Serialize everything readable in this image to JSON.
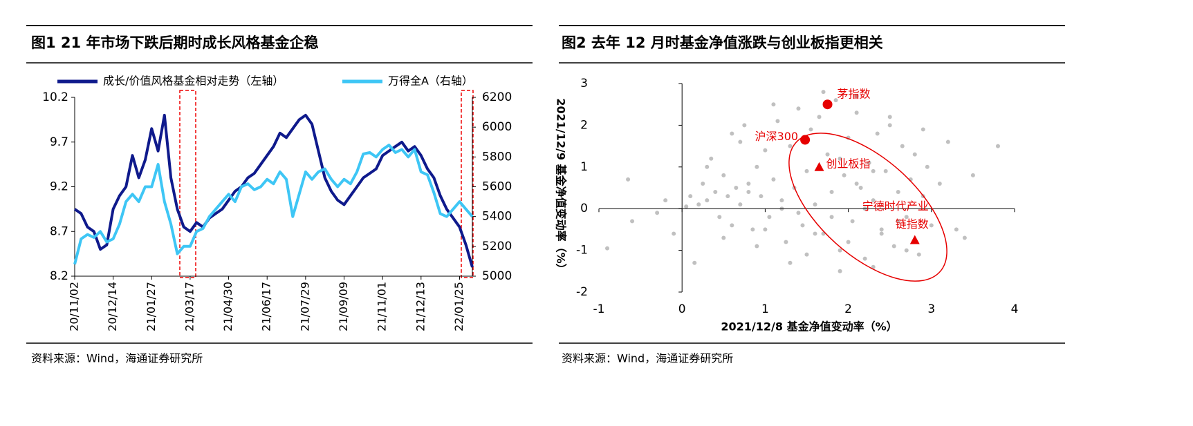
{
  "chart_data": [
    {
      "type": "line",
      "title": "图1  21 年市场下跌后期时成长风格基金企稳",
      "source": "资料来源：Wind，海通证券研究所",
      "categories": [
        "20/11/02",
        null,
        null,
        null,
        null,
        null,
        "20/12/14",
        null,
        null,
        null,
        null,
        null,
        "21/01/27",
        null,
        null,
        null,
        null,
        null,
        "21/03/17",
        null,
        null,
        null,
        null,
        null,
        "21/04/30",
        null,
        null,
        null,
        null,
        null,
        "21/06/17",
        null,
        null,
        null,
        null,
        null,
        "21/07/29",
        null,
        null,
        null,
        null,
        null,
        "21/09/09",
        null,
        null,
        null,
        null,
        null,
        "21/11/01",
        null,
        null,
        null,
        null,
        null,
        "21/12/13",
        null,
        null,
        null,
        null,
        null,
        "22/01/25",
        null,
        null
      ],
      "ylim": [
        8.2,
        10.2
      ],
      "yticks": [
        8.2,
        8.7,
        9.2,
        9.7,
        10.2
      ],
      "y2lim": [
        5000,
        6200
      ],
      "y2ticks": [
        5000,
        5200,
        5400,
        5600,
        5800,
        6000,
        6200
      ],
      "series": [
        {
          "name": "成长/价值风格基金相对走势（左轴）",
          "color": "#0f1a8c",
          "values": [
            8.95,
            8.9,
            8.75,
            8.7,
            8.5,
            8.55,
            8.95,
            9.1,
            9.2,
            9.55,
            9.3,
            9.5,
            9.85,
            9.6,
            10.0,
            9.3,
            8.95,
            8.75,
            8.7,
            8.8,
            8.75,
            8.85,
            8.9,
            8.95,
            9.05,
            9.15,
            9.2,
            9.3,
            9.35,
            9.45,
            9.55,
            9.65,
            9.8,
            9.75,
            9.85,
            9.95,
            10.0,
            9.9,
            9.6,
            9.3,
            9.15,
            9.05,
            9.0,
            9.1,
            9.2,
            9.3,
            9.35,
            9.4,
            9.55,
            9.6,
            9.65,
            9.7,
            9.6,
            9.65,
            9.55,
            9.4,
            9.3,
            9.1,
            8.95,
            8.85,
            8.75,
            8.55,
            8.3
          ]
        },
        {
          "name": "万得全A（右轴）",
          "color": "#3ec6f5",
          "axis": "y2",
          "values": [
            5080,
            5250,
            5280,
            5260,
            5300,
            5230,
            5250,
            5350,
            5500,
            5550,
            5500,
            5600,
            5600,
            5750,
            5500,
            5350,
            5150,
            5200,
            5200,
            5300,
            5320,
            5400,
            5450,
            5500,
            5550,
            5500,
            5600,
            5620,
            5580,
            5600,
            5650,
            5620,
            5700,
            5650,
            5400,
            5550,
            5700,
            5650,
            5700,
            5720,
            5650,
            5600,
            5650,
            5620,
            5700,
            5820,
            5830,
            5800,
            5850,
            5880,
            5830,
            5850,
            5800,
            5850,
            5700,
            5680,
            5560,
            5420,
            5400,
            5450,
            5500,
            5450,
            5400
          ]
        }
      ]
    },
    {
      "type": "scatter",
      "title": "图2  去年 12 月时基金净值涨跌与创业板指更相关",
      "source": "资料来源：Wind，海通证券研究所",
      "x_label": "2021/12/8 基金净值变动率（%）",
      "y_label": "2021/12/9 基金净值变动率（%）",
      "xlim": [
        -1,
        4
      ],
      "xticks": [
        -1,
        0,
        1,
        2,
        3,
        4
      ],
      "ylim": [
        -2,
        3
      ],
      "yticks": [
        -2,
        -1,
        0,
        1,
        2,
        3
      ],
      "color": "#c0c0c0",
      "x": [
        -0.9,
        -0.65,
        -0.6,
        -0.3,
        -0.2,
        -0.1,
        0.05,
        0.1,
        0.15,
        0.2,
        0.25,
        0.3,
        0.35,
        0.4,
        0.45,
        0.5,
        0.55,
        0.6,
        0.65,
        0.7,
        0.75,
        0.8,
        0.85,
        0.9,
        0.95,
        1.0,
        1.05,
        1.1,
        1.15,
        1.2,
        1.25,
        1.3,
        1.35,
        1.4,
        1.45,
        1.5,
        1.55,
        1.6,
        1.65,
        1.7,
        1.75,
        1.8,
        1.85,
        1.9,
        1.95,
        2.0,
        2.05,
        2.1,
        2.15,
        2.2,
        2.25,
        2.3,
        2.35,
        2.4,
        2.45,
        2.5,
        2.55,
        2.6,
        2.65,
        2.7,
        2.75,
        2.8,
        2.85,
        2.9,
        2.95,
        3.0,
        3.1,
        3.2,
        3.3,
        3.5,
        3.8,
        0.3,
        0.5,
        0.7,
        0.9,
        1.1,
        1.3,
        1.5,
        1.7,
        1.9,
        2.1,
        2.3,
        2.5,
        2.7,
        2.9,
        1.2,
        1.4,
        1.6,
        1.8,
        2.0,
        2.2,
        2.4,
        2.6,
        0.8,
        1.0,
        1.9,
        2.1,
        2.3,
        0.6,
        3.4
      ],
      "y": [
        -0.95,
        0.7,
        -0.3,
        -0.1,
        0.2,
        -0.6,
        0.05,
        0.3,
        -1.3,
        0.1,
        0.6,
        0.2,
        1.2,
        0.4,
        -0.2,
        0.8,
        0.3,
        1.8,
        0.5,
        0.1,
        2.0,
        0.6,
        -0.5,
        1.0,
        0.3,
        1.4,
        -0.2,
        0.7,
        2.1,
        0.2,
        -0.8,
        1.5,
        0.5,
        2.4,
        -0.4,
        0.9,
        1.9,
        0.1,
        2.2,
        -0.6,
        1.3,
        0.4,
        2.6,
        -1.0,
        0.8,
        1.7,
        -0.3,
        2.3,
        0.5,
        -1.2,
        1.1,
        0.2,
        1.8,
        -0.5,
        0.9,
        2.0,
        -0.9,
        0.4,
        1.5,
        -0.2,
        0.7,
        1.3,
        -1.1,
        0.3,
        1.0,
        -0.4,
        0.6,
        1.6,
        -0.5,
        0.8,
        1.5,
        1.0,
        -0.7,
        1.6,
        -0.9,
        2.5,
        -1.3,
        -1.1,
        2.8,
        -1.5,
        2.7,
        -1.4,
        2.2,
        -1.0,
        1.9,
        0.0,
        -0.1,
        -0.6,
        -0.2,
        -0.8,
        0.0,
        -0.6,
        -0.3,
        0.4,
        -0.5,
        1.2,
        0.6,
        0.9,
        -0.4,
        -0.7
      ],
      "highlights": [
        {
          "label_lines": [
            "茅指数"
          ],
          "x": 1.75,
          "y": 2.5,
          "marker": "circle",
          "color": "#e60000"
        },
        {
          "label_lines": [
            "沪深300"
          ],
          "x": 1.48,
          "y": 1.65,
          "marker": "circle",
          "color": "#e60000"
        },
        {
          "label_lines": [
            "创业板指"
          ],
          "x": 1.65,
          "y": 1.0,
          "marker": "triangle",
          "color": "#e60000"
        },
        {
          "label_lines": [
            "宁德时代产业",
            "链指数"
          ],
          "x": 2.8,
          "y": -0.75,
          "marker": "triangle",
          "color": "#e60000"
        }
      ]
    }
  ]
}
